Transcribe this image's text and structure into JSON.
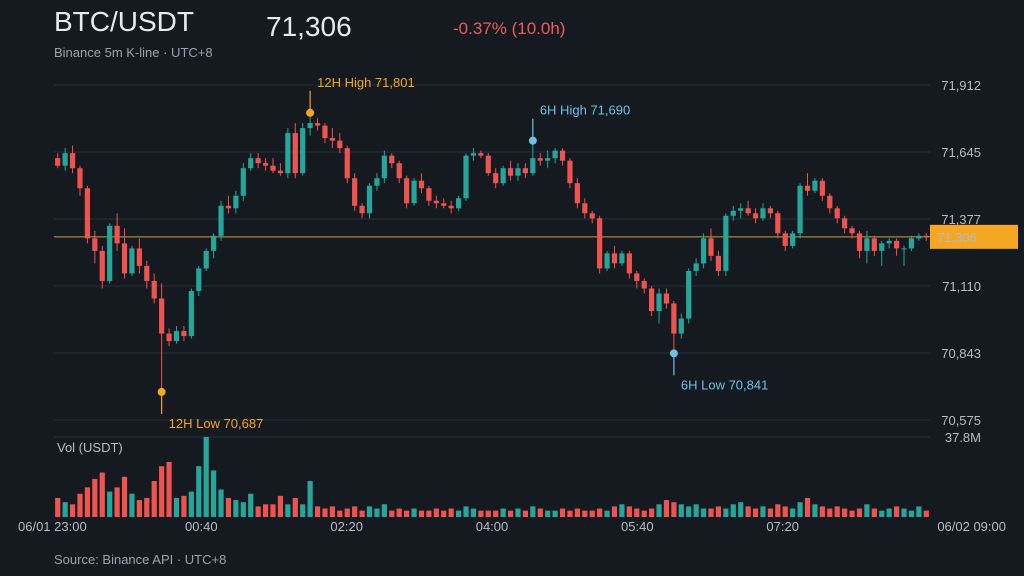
{
  "header": {
    "title": "BTC/USDT",
    "subtitle": "Binance 5m K-line · UTC+8",
    "price": "71,306",
    "change": "-0.37% (10.0h)"
  },
  "footer": {
    "source": "Source: Binance API · UTC+8"
  },
  "colors": {
    "up": "#26a69a",
    "down": "#ef5350",
    "highlight12h": "#f5a623",
    "highlight6h": "#6ec1e4",
    "last_line": "#c8a23a",
    "last_badge": "#f5a623"
  },
  "chart_data": {
    "type": "candlestick",
    "interval": "5m",
    "x_ticks": [
      "06/01 23:00",
      "00:40",
      "02:20",
      "04:00",
      "05:40",
      "07:20",
      "06/02 09:00"
    ],
    "price_ticks": [
      "71,912",
      "71,645",
      "71,377",
      "71,110",
      "70,843",
      "70,575"
    ],
    "price_ylim": [
      70575,
      71912
    ],
    "volume_label": "Vol (USDT)",
    "volume_max_label": "37.8M",
    "volume_max": 37.8,
    "last_price": 71306,
    "last_price_label": "71,306",
    "annotations": [
      {
        "label": "12H High 71,801",
        "index": 34,
        "value": 71801,
        "side": "above",
        "color": "#f5a623"
      },
      {
        "label": "12H Low 70,687",
        "index": 14,
        "value": 70687,
        "side": "below",
        "color": "#f5a623"
      },
      {
        "label": "6H High 71,690",
        "index": 64,
        "value": 71690,
        "side": "above",
        "color": "#6ec1e4"
      },
      {
        "label": "6H Low 70,841",
        "index": 83,
        "value": 70841,
        "side": "below",
        "color": "#6ec1e4"
      }
    ],
    "candles": [
      [
        71620,
        71640,
        71580,
        71590
      ],
      [
        71590,
        71660,
        71570,
        71640
      ],
      [
        71640,
        71670,
        71560,
        71580
      ],
      [
        71580,
        71590,
        71470,
        71500
      ],
      [
        71500,
        71510,
        71280,
        71300
      ],
      [
        71300,
        71330,
        71200,
        71250
      ],
      [
        71250,
        71270,
        71100,
        71130
      ],
      [
        71130,
        71360,
        71120,
        71350
      ],
      [
        71350,
        71400,
        71250,
        71280
      ],
      [
        71280,
        71340,
        71140,
        71160
      ],
      [
        71160,
        71270,
        71150,
        71260
      ],
      [
        71260,
        71300,
        71160,
        71190
      ],
      [
        71190,
        71210,
        71100,
        71130
      ],
      [
        71130,
        71160,
        71040,
        71060
      ],
      [
        71060,
        71120,
        70687,
        70920
      ],
      [
        70920,
        70940,
        70870,
        70890
      ],
      [
        70890,
        70950,
        70880,
        70930
      ],
      [
        70930,
        70950,
        70890,
        70910
      ],
      [
        70910,
        71100,
        70900,
        71090
      ],
      [
        71090,
        71190,
        71070,
        71180
      ],
      [
        71180,
        71260,
        71170,
        71250
      ],
      [
        71250,
        71320,
        71220,
        71310
      ],
      [
        71310,
        71450,
        71290,
        71430
      ],
      [
        71430,
        71470,
        71400,
        71420
      ],
      [
        71420,
        71490,
        71400,
        71470
      ],
      [
        71470,
        71600,
        71450,
        71580
      ],
      [
        71580,
        71640,
        71570,
        71620
      ],
      [
        71620,
        71640,
        71580,
        71600
      ],
      [
        71600,
        71620,
        71570,
        71590
      ],
      [
        71590,
        71620,
        71560,
        71570
      ],
      [
        71570,
        71600,
        71550,
        71560
      ],
      [
        71560,
        71740,
        71540,
        71720
      ],
      [
        71720,
        71760,
        71540,
        71560
      ],
      [
        71560,
        71760,
        71550,
        71740
      ],
      [
        71740,
        71801,
        71710,
        71760
      ],
      [
        71760,
        71780,
        71730,
        71750
      ],
      [
        71750,
        71760,
        71680,
        71700
      ],
      [
        71700,
        71740,
        71660,
        71690
      ],
      [
        71690,
        71720,
        71640,
        71660
      ],
      [
        71660,
        71670,
        71520,
        71540
      ],
      [
        71540,
        71560,
        71410,
        71430
      ],
      [
        71430,
        71440,
        71380,
        71400
      ],
      [
        71400,
        71520,
        71380,
        71510
      ],
      [
        71510,
        71560,
        71490,
        71540
      ],
      [
        71540,
        71650,
        71520,
        71630
      ],
      [
        71630,
        71640,
        71580,
        71600
      ],
      [
        71600,
        71610,
        71520,
        71540
      ],
      [
        71540,
        71550,
        71420,
        71440
      ],
      [
        71440,
        71540,
        71430,
        71530
      ],
      [
        71530,
        71560,
        71480,
        71500
      ],
      [
        71500,
        71510,
        71430,
        71450
      ],
      [
        71450,
        71470,
        71420,
        71440
      ],
      [
        71440,
        71460,
        71420,
        71430
      ],
      [
        71430,
        71450,
        71400,
        71420
      ],
      [
        71420,
        71470,
        71410,
        71460
      ],
      [
        71460,
        71640,
        71450,
        71630
      ],
      [
        71630,
        71660,
        71610,
        71640
      ],
      [
        71640,
        71650,
        71620,
        71630
      ],
      [
        71630,
        71640,
        71550,
        71560
      ],
      [
        71560,
        71580,
        71500,
        71520
      ],
      [
        71520,
        71590,
        71510,
        71580
      ],
      [
        71580,
        71610,
        71530,
        71550
      ],
      [
        71550,
        71600,
        71530,
        71580
      ],
      [
        71580,
        71600,
        71540,
        71560
      ],
      [
        71560,
        71690,
        71550,
        71620
      ],
      [
        71620,
        71640,
        71590,
        71610
      ],
      [
        71610,
        71650,
        71580,
        71620
      ],
      [
        71620,
        71660,
        71600,
        71650
      ],
      [
        71650,
        71660,
        71590,
        71610
      ],
      [
        71610,
        71620,
        71500,
        71520
      ],
      [
        71520,
        71540,
        71420,
        71440
      ],
      [
        71440,
        71460,
        71380,
        71400
      ],
      [
        71400,
        71410,
        71360,
        71380
      ],
      [
        71380,
        71390,
        71160,
        71180
      ],
      [
        71180,
        71250,
        71170,
        71240
      ],
      [
        71240,
        71270,
        71180,
        71200
      ],
      [
        71200,
        71250,
        71190,
        71240
      ],
      [
        71240,
        71250,
        71140,
        71160
      ],
      [
        71160,
        71170,
        71100,
        71130
      ],
      [
        71130,
        71140,
        71080,
        71100
      ],
      [
        71100,
        71110,
        70990,
        71010
      ],
      [
        71010,
        71100,
        70960,
        71080
      ],
      [
        71080,
        71100,
        71020,
        71040
      ],
      [
        71040,
        71050,
        70841,
        70920
      ],
      [
        70920,
        71000,
        70900,
        70980
      ],
      [
        70980,
        71180,
        70960,
        71170
      ],
      [
        71170,
        71220,
        71150,
        71200
      ],
      [
        71200,
        71320,
        71180,
        71300
      ],
      [
        71300,
        71340,
        71210,
        71230
      ],
      [
        71230,
        71250,
        71150,
        71170
      ],
      [
        71170,
        71400,
        71150,
        71390
      ],
      [
        71390,
        71430,
        71370,
        71410
      ],
      [
        71410,
        71440,
        71380,
        71420
      ],
      [
        71420,
        71450,
        71390,
        71400
      ],
      [
        71400,
        71420,
        71360,
        71380
      ],
      [
        71380,
        71440,
        71370,
        71420
      ],
      [
        71420,
        71430,
        71380,
        71400
      ],
      [
        71400,
        71410,
        71300,
        71320
      ],
      [
        71320,
        71330,
        71250,
        71270
      ],
      [
        71270,
        71330,
        71260,
        71320
      ],
      [
        71320,
        71520,
        71300,
        71510
      ],
      [
        71510,
        71560,
        71470,
        71490
      ],
      [
        71490,
        71540,
        71480,
        71530
      ],
      [
        71530,
        71540,
        71450,
        71470
      ],
      [
        71470,
        71480,
        71400,
        71420
      ],
      [
        71420,
        71430,
        71360,
        71380
      ],
      [
        71380,
        71390,
        71320,
        71340
      ],
      [
        71340,
        71350,
        71300,
        71320
      ],
      [
        71320,
        71330,
        71220,
        71250
      ],
      [
        71250,
        71330,
        71200,
        71300
      ],
      [
        71300,
        71310,
        71230,
        71250
      ],
      [
        71250,
        71290,
        71190,
        71280
      ],
      [
        71280,
        71300,
        71260,
        71290
      ],
      [
        71290,
        71300,
        71230,
        71260
      ],
      [
        71260,
        71270,
        71190,
        71260
      ],
      [
        71260,
        71310,
        71250,
        71300
      ],
      [
        71300,
        71320,
        71290,
        71310
      ],
      [
        71310,
        71320,
        71290,
        71306
      ]
    ],
    "volumes": [
      9,
      7,
      6,
      11,
      14,
      18,
      21,
      12,
      14,
      19,
      11,
      8,
      9,
      17,
      24,
      26,
      9,
      10,
      12,
      24,
      37.8,
      22,
      13,
      9,
      8,
      7,
      11,
      5,
      6,
      6,
      10,
      6,
      9,
      6,
      17,
      5,
      4,
      5,
      3,
      4,
      5,
      3,
      5,
      4,
      6,
      3,
      4,
      3,
      4,
      3,
      3,
      4,
      3,
      4,
      3,
      5,
      4,
      3,
      3,
      3,
      4,
      3,
      4,
      3,
      5,
      4,
      3,
      3,
      4,
      3,
      4,
      3,
      3,
      4,
      3,
      5,
      6,
      5,
      4,
      3,
      4,
      6,
      8,
      7,
      6,
      5,
      6,
      4,
      4,
      5,
      4,
      6,
      7,
      5,
      4,
      5,
      4,
      6,
      5,
      4,
      7,
      9,
      6,
      5,
      4,
      5,
      4,
      3,
      4,
      6,
      4,
      3,
      4,
      5,
      4,
      3,
      5,
      3
    ]
  }
}
